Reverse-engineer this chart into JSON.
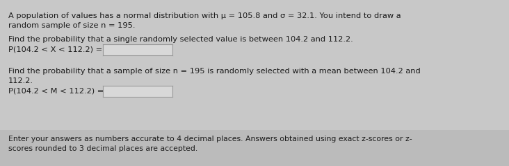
{
  "bg_color": "#c8c8c8",
  "footer_bg": "#bbbbbb",
  "title_line1": "A population of values has a normal distribution with μ = 105.8 and σ = 32.1. You intend to draw a",
  "title_line2": "random sample of size n = 195.",
  "section1_label": "Find the probability that a single randomly selected value is between 104.2 and 112.2.",
  "section1_prob": "P(104.2 < X < 112.2) =",
  "section2_line1": "Find the probability that a sample of size n = 195 is randomly selected with a mean between 104.2 and",
  "section2_line2": "112.2.",
  "section2_prob": "P(104.2 < M < 112.2) =",
  "footer_line1": "Enter your answers as numbers accurate to 4 decimal places. Answers obtained using exact z-scores or z-",
  "footer_line2": "scores rounded to 3 decimal places are accepted.",
  "box_fill": "#d8d8d8",
  "box_edge": "#999999",
  "font_size_main": 8.2,
  "font_size_footer": 7.8
}
